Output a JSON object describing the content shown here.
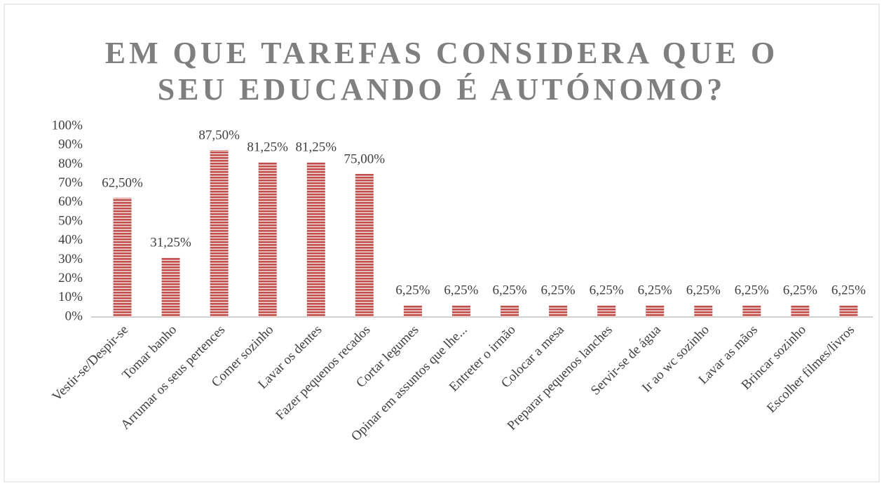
{
  "chart_data": {
    "type": "bar",
    "title": [
      "EM QUE TAREFAS CONSIDERA QUE O",
      "SEU EDUCANDO É AUTÓNOMO?"
    ],
    "categories": [
      "Vestir-se/Despir-se",
      "Tomar banho",
      "Arrumar os seus pertences",
      "Comer sozinho",
      "Lavar os dentes",
      "Fazer pequenos recados",
      "Cortar legumes",
      "Opinar em assuntos que lhe...",
      "Entreter o irmão",
      "Colocar a mesa",
      "Preparar pequenos lanches",
      "Servir-se de água",
      "Ir ao wc sozinho",
      "Lavar as mãos",
      "Brincar sozinho",
      "Escolher filmes/livros"
    ],
    "values": [
      62.5,
      31.25,
      87.5,
      81.25,
      81.25,
      75,
      6.25,
      6.25,
      6.25,
      6.25,
      6.25,
      6.25,
      6.25,
      6.25,
      6.25,
      6.25
    ],
    "value_labels": [
      "62,50%",
      "31,25%",
      "87,50%",
      "81,25%",
      "81,25%",
      "75,00%",
      "6,25%",
      "6,25%",
      "6,25%",
      "6,25%",
      "6,25%",
      "6,25%",
      "6,25%",
      "6,25%",
      "6,25%",
      "6,25%"
    ],
    "color": "#c0504d",
    "ylim": [
      0,
      100
    ],
    "yticks": [
      {
        "value": 0,
        "label": "0%"
      },
      {
        "value": 10,
        "label": "10%"
      },
      {
        "value": 20,
        "label": "20%"
      },
      {
        "value": 30,
        "label": "30%"
      },
      {
        "value": 40,
        "label": "40%"
      },
      {
        "value": 50,
        "label": "50%"
      },
      {
        "value": 60,
        "label": "60%"
      },
      {
        "value": 70,
        "label": "70%"
      },
      {
        "value": 80,
        "label": "80%"
      },
      {
        "value": 90,
        "label": "90%"
      },
      {
        "value": 100,
        "label": "100%"
      }
    ],
    "grid": false
  }
}
